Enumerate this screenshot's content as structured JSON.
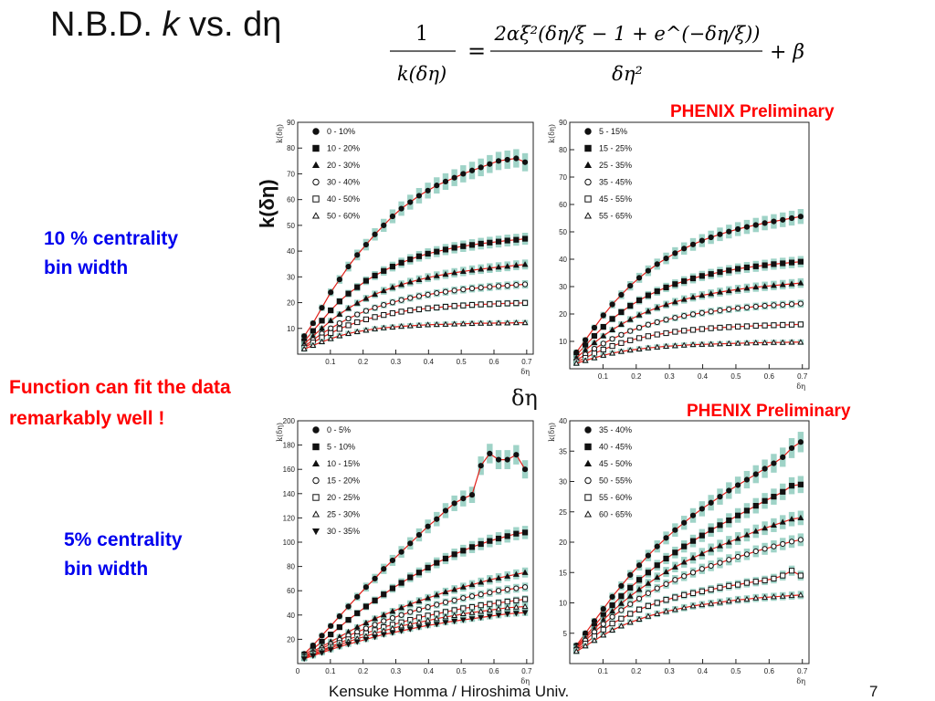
{
  "slide": {
    "title_prefix": "N.B.D. ",
    "title_k": "k",
    "title_suffix": " vs. dη",
    "formula": {
      "lhs_num": "1",
      "lhs_den": "k(δη)",
      "rhs_num": "2αξ²(δη/ξ − 1 + e^(−δη/ξ))",
      "rhs_den": "δη²",
      "plus_beta": "+ β"
    },
    "phenix_label_top": "PHENIX Preliminary",
    "phenix_label_bottom": "PHENIX Preliminary",
    "k_axis_title": "k(δη)",
    "deta_center_label": "δη",
    "note_10pct_line1": "10 % centrality",
    "note_10pct_line2": "bin width",
    "note_fit_line1": "Function can fit the data",
    "note_fit_line2": "remarkably well !",
    "note_5pct_line1": "5% centrality",
    "note_5pct_line2": "bin width",
    "footer": "Kensuke Homma / Hiroshima Univ.",
    "page_number": "7"
  },
  "colors": {
    "fit_line": "#e0201a",
    "error_band": "#7fc4b4",
    "marker": "#111111",
    "title_red": "#ff0000",
    "note_blue": "#0000ee"
  },
  "chart_data": [
    {
      "type": "scatter",
      "ylabel": "k(δη)",
      "xlabel": "δη",
      "xlim": [
        0,
        0.72
      ],
      "ylim": [
        0,
        90
      ],
      "xticks": [
        "0.1",
        "0.2",
        "0.3",
        "0.4",
        "0.5",
        "0.6",
        "0.7"
      ],
      "yticks": [
        "10",
        "20",
        "30",
        "40",
        "50",
        "60",
        "70",
        "80",
        "90"
      ],
      "legend_position": "top-left",
      "series": [
        {
          "name": "0 - 10%",
          "marker": "filled-circle",
          "values": [
            7,
            12,
            18,
            24,
            29,
            34,
            38.5,
            42.5,
            46.5,
            50,
            53.5,
            56.5,
            59,
            61.5,
            63.5,
            65.5,
            67,
            68.5,
            70,
            71.3,
            72.5,
            73.8,
            75,
            75.5,
            76,
            74.5
          ]
        },
        {
          "name": "10 - 20%",
          "marker": "filled-square",
          "values": [
            5,
            9,
            13,
            17,
            20.5,
            23.5,
            26,
            28.5,
            30.5,
            32.3,
            34,
            35.5,
            36.8,
            38,
            39,
            39.8,
            40.6,
            41.3,
            41.9,
            42.4,
            42.9,
            43.3,
            43.7,
            44.1,
            44.4,
            44.8
          ]
        },
        {
          "name": "20 - 30%",
          "marker": "filled-triangle",
          "values": [
            4,
            7,
            10,
            13,
            15.5,
            17.8,
            19.8,
            21.6,
            23.2,
            24.6,
            25.9,
            27,
            28,
            28.9,
            29.7,
            30.4,
            31,
            31.6,
            32.1,
            32.6,
            33,
            33.4,
            33.8,
            34.1,
            34.5,
            34.8
          ]
        },
        {
          "name": "30 - 40%",
          "marker": "open-circle",
          "values": [
            3,
            5.5,
            8,
            10,
            12,
            13.8,
            15.4,
            16.8,
            18,
            19.1,
            20.1,
            21,
            21.8,
            22.5,
            23.1,
            23.7,
            24.2,
            24.7,
            25.1,
            25.5,
            25.8,
            26.1,
            26.4,
            26.6,
            26.9,
            27.1
          ]
        },
        {
          "name": "40 - 50%",
          "marker": "open-square",
          "values": [
            2.5,
            4.5,
            6.5,
            8.2,
            9.8,
            11.2,
            12.4,
            13.5,
            14.4,
            15.2,
            15.9,
            16.5,
            17,
            17.4,
            17.8,
            18.1,
            18.4,
            18.7,
            18.9,
            19.1,
            19.3,
            19.4,
            19.6,
            19.7,
            19.8,
            19.9
          ]
        },
        {
          "name": "50 - 60%",
          "marker": "open-triangle",
          "values": [
            2,
            3.4,
            4.8,
            6,
            7.1,
            8,
            8.7,
            9.3,
            9.8,
            10.2,
            10.5,
            10.8,
            11,
            11.2,
            11.4,
            11.5,
            11.6,
            11.7,
            11.8,
            11.9,
            12,
            12,
            12.1,
            12.1,
            12.2,
            12.2
          ]
        }
      ]
    },
    {
      "type": "scatter",
      "ylabel": "k(δη)",
      "xlabel": "δη",
      "xlim": [
        0,
        0.72
      ],
      "ylim": [
        0,
        90
      ],
      "xticks": [
        "0.1",
        "0.2",
        "0.3",
        "0.4",
        "0.5",
        "0.6",
        "0.7"
      ],
      "yticks": [
        "10",
        "20",
        "30",
        "40",
        "50",
        "60",
        "70",
        "80",
        "90"
      ],
      "legend_position": "top-left",
      "series": [
        {
          "name": "5 - 15%",
          "marker": "filled-circle",
          "values": [
            6,
            10.5,
            15,
            19.5,
            23.5,
            27,
            30.3,
            33.2,
            35.8,
            38.2,
            40.3,
            42.2,
            43.9,
            45.4,
            46.8,
            48,
            49.1,
            50.1,
            51,
            51.8,
            52.5,
            53.2,
            53.8,
            54.4,
            55,
            55.6
          ]
        },
        {
          "name": "15 - 25%",
          "marker": "filled-square",
          "values": [
            5,
            8.5,
            12,
            15.3,
            18.2,
            20.7,
            23,
            25,
            26.8,
            28.3,
            29.7,
            30.9,
            32,
            33,
            33.9,
            34.6,
            35.3,
            35.9,
            36.5,
            37,
            37.4,
            37.8,
            38.2,
            38.5,
            38.8,
            39.1
          ]
        },
        {
          "name": "25 - 35%",
          "marker": "filled-triangle",
          "values": [
            4,
            6.8,
            9.5,
            12,
            14.2,
            16.2,
            18,
            19.6,
            21,
            22.3,
            23.4,
            24.4,
            25.3,
            26.1,
            26.8,
            27.4,
            28,
            28.5,
            29,
            29.4,
            29.8,
            30.1,
            30.4,
            30.7,
            31,
            31.3
          ]
        },
        {
          "name": "35 - 45%",
          "marker": "open-circle",
          "values": [
            3,
            5.2,
            7.3,
            9.2,
            10.9,
            12.4,
            13.8,
            15,
            16.1,
            17,
            17.9,
            18.6,
            19.3,
            19.9,
            20.4,
            20.9,
            21.3,
            21.7,
            22.1,
            22.4,
            22.7,
            23,
            23.2,
            23.4,
            23.6,
            23.8
          ]
        },
        {
          "name": "45 - 55%",
          "marker": "open-square",
          "values": [
            2.5,
            4,
            5.6,
            7,
            8.3,
            9.4,
            10.4,
            11.2,
            11.9,
            12.5,
            13,
            13.5,
            13.9,
            14.2,
            14.5,
            14.8,
            15,
            15.2,
            15.4,
            15.5,
            15.7,
            15.8,
            15.9,
            16,
            16.1,
            16.2
          ]
        },
        {
          "name": "55 - 65%",
          "marker": "open-triangle",
          "values": [
            2,
            3,
            4,
            4.9,
            5.7,
            6.3,
            6.8,
            7.2,
            7.6,
            7.9,
            8.2,
            8.4,
            8.6,
            8.8,
            8.9,
            9,
            9.1,
            9.2,
            9.3,
            9.4,
            9.5,
            9.5,
            9.6,
            9.6,
            9.7,
            9.7
          ]
        }
      ]
    },
    {
      "type": "scatter",
      "ylabel": "k(δη)",
      "xlabel": "δη",
      "xlim": [
        0,
        0.72
      ],
      "ylim": [
        0,
        200
      ],
      "xticks": [
        "0",
        "0.1",
        "0.2",
        "0.3",
        "0.4",
        "0.5",
        "0.6",
        "0.7"
      ],
      "yticks": [
        "20",
        "40",
        "60",
        "80",
        "100",
        "120",
        "140",
        "160",
        "180",
        "200"
      ],
      "legend_position": "top-left",
      "series": [
        {
          "name": "0 - 5%",
          "marker": "filled-circle",
          "values": [
            8,
            15,
            23,
            31,
            39,
            47,
            55,
            63,
            70,
            78,
            85,
            92,
            99,
            106,
            113,
            119,
            126,
            132,
            136,
            139,
            163,
            173,
            168,
            168,
            172,
            160
          ]
        },
        {
          "name": "5 - 10%",
          "marker": "filled-square",
          "values": [
            7,
            12,
            18,
            24,
            30,
            36,
            41.5,
            47,
            52,
            57,
            62,
            66.5,
            71,
            75,
            79,
            83,
            86.5,
            90,
            93,
            96,
            98.5,
            101,
            103,
            105,
            107,
            108
          ]
        },
        {
          "name": "10 - 15%",
          "marker": "filled-triangle",
          "values": [
            6,
            10,
            14,
            18,
            22,
            26,
            30,
            33.5,
            37,
            40,
            43,
            46,
            49,
            51.5,
            54,
            56.5,
            59,
            61,
            63,
            65,
            67,
            69,
            70.5,
            72,
            73.5,
            75
          ]
        },
        {
          "name": "15 - 20%",
          "marker": "open-circle",
          "values": [
            5.5,
            9,
            12.5,
            16,
            19.5,
            23,
            26,
            29,
            32,
            35,
            37.5,
            40,
            42.5,
            44.5,
            46.5,
            48.5,
            50.5,
            52,
            54,
            55.5,
            57,
            58.5,
            60,
            61,
            62,
            63
          ]
        },
        {
          "name": "20 - 25%",
          "marker": "open-square",
          "values": [
            5,
            8,
            11,
            14,
            17,
            20,
            22.5,
            25,
            27.5,
            30,
            32,
            34,
            36,
            38,
            39.5,
            41,
            42.5,
            44,
            45.5,
            46.5,
            48,
            49,
            50,
            51,
            52,
            53
          ]
        },
        {
          "name": "25 - 30%",
          "marker": "open-triangle",
          "values": [
            4.5,
            7.5,
            10,
            13,
            15.5,
            18,
            20.5,
            22.5,
            25,
            27,
            29,
            31,
            32.5,
            34,
            35.5,
            37,
            38.5,
            39.5,
            41,
            42,
            43,
            44,
            45,
            46,
            46.5,
            47
          ]
        },
        {
          "name": "30 - 35%",
          "marker": "filled-inverted-triangle",
          "values": [
            4,
            6.5,
            9,
            11.5,
            14,
            16,
            18,
            20,
            22,
            24,
            25.5,
            27,
            28.5,
            30,
            31.5,
            32.5,
            34,
            35,
            36,
            37,
            38,
            39,
            40,
            41,
            41.5,
            42
          ]
        }
      ]
    },
    {
      "type": "scatter",
      "ylabel": "k(δη)",
      "xlabel": "δη",
      "xlim": [
        0,
        0.72
      ],
      "ylim": [
        0,
        40
      ],
      "xticks": [
        "0.1",
        "0.2",
        "0.3",
        "0.4",
        "0.5",
        "0.6",
        "0.7"
      ],
      "yticks": [
        "5",
        "10",
        "15",
        "20",
        "25",
        "30",
        "35",
        "40"
      ],
      "legend_position": "top-left",
      "series": [
        {
          "name": "35 - 40%",
          "marker": "filled-circle",
          "values": [
            3,
            5,
            7,
            9,
            11,
            12.8,
            14.6,
            16.2,
            17.8,
            19.3,
            20.7,
            22,
            23.2,
            24.4,
            25.5,
            26.5,
            27.5,
            28.5,
            29.4,
            30.3,
            31.2,
            32.1,
            33,
            34,
            35.5,
            36.5
          ]
        },
        {
          "name": "40 - 45%",
          "marker": "filled-square",
          "values": [
            2.8,
            4.5,
            6.2,
            8,
            9.6,
            11.1,
            12.5,
            13.8,
            15,
            16.2,
            17.3,
            18.3,
            19.3,
            20.2,
            21.1,
            22,
            22.8,
            23.6,
            24.4,
            25.2,
            26,
            26.8,
            27.5,
            28.3,
            29.3,
            29.5
          ]
        },
        {
          "name": "45 - 50%",
          "marker": "filled-triangle",
          "values": [
            2.6,
            4.2,
            5.7,
            7.2,
            8.6,
            9.9,
            11.1,
            12.2,
            13.2,
            14.2,
            15.1,
            15.9,
            16.7,
            17.4,
            18.1,
            18.8,
            19.4,
            20,
            20.6,
            21.2,
            21.8,
            22.3,
            22.8,
            23.3,
            23.8,
            24
          ]
        },
        {
          "name": "50 - 55%",
          "marker": "open-circle",
          "values": [
            2.4,
            3.8,
            5.2,
            6.5,
            7.7,
            8.8,
            9.8,
            10.7,
            11.6,
            12.4,
            13.1,
            13.8,
            14.4,
            15,
            15.6,
            16.1,
            16.6,
            17.1,
            17.6,
            18,
            18.5,
            18.9,
            19.3,
            19.7,
            20.1,
            20.4
          ]
        },
        {
          "name": "55 - 60%",
          "marker": "open-square",
          "values": [
            2.2,
            3.3,
            4.5,
            5.6,
            6.6,
            7.4,
            8.2,
            8.9,
            9.5,
            10,
            10.5,
            10.9,
            11.3,
            11.6,
            11.9,
            12.2,
            12.5,
            12.8,
            13,
            13.3,
            13.5,
            13.7,
            14,
            14.5,
            15.3,
            14.5
          ]
        },
        {
          "name": "60 - 65%",
          "marker": "open-triangle",
          "values": [
            2,
            2.9,
            3.8,
            4.7,
            5.5,
            6.2,
            6.8,
            7.3,
            7.8,
            8.2,
            8.6,
            8.9,
            9.2,
            9.5,
            9.7,
            9.9,
            10.1,
            10.3,
            10.5,
            10.6,
            10.8,
            10.9,
            11,
            11.1,
            11.2,
            11.3
          ]
        }
      ]
    }
  ]
}
